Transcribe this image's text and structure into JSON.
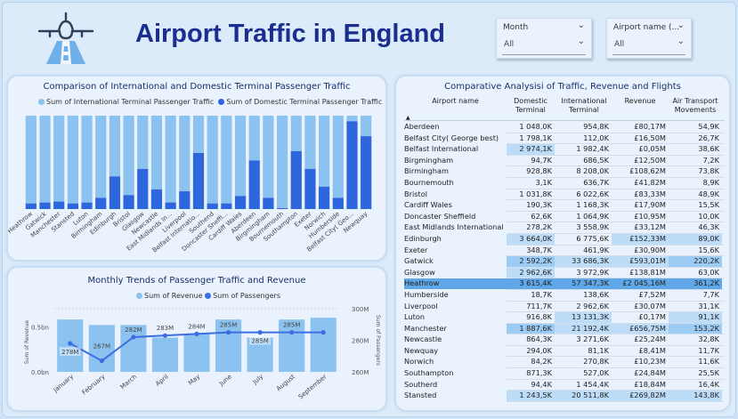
{
  "header": {
    "title": "Airport Traffic in England",
    "logo_icon": "airplane-runway-icon"
  },
  "slicers": [
    {
      "label": "Month",
      "value": "All"
    },
    {
      "label": "Airport name (...",
      "value": "All"
    }
  ],
  "colors": {
    "international": "#8cc2ef",
    "domestic": "#2e66dd",
    "title": "#1a2e8f"
  },
  "comparison": {
    "title": "Comparison of International and Domestic Terminal Passenger Traffic",
    "legend": [
      "Sum of International Terminal Passenger Traffic",
      "Sum of Domestic Terminal Passenger Traffic"
    ]
  },
  "monthly": {
    "title": "Monthly Trends of Passenger Traffic and Revenue",
    "legend": [
      "Sum of Revenue",
      "Sum of Passengers"
    ],
    "y_left_label": "Sum of Revenue",
    "y_right_label": "Sum of Passengers",
    "y_left_ticks": [
      "0.5bn",
      "0.0bn"
    ],
    "y_right_ticks": [
      "300M",
      "280M",
      "260M"
    ]
  },
  "table": {
    "title": "Comparative Analysisi of Traffic, Revenue and Flights",
    "headers": [
      "Airport name",
      "Domestic Terminal",
      "International Terminal",
      "Revenue",
      "Air Transport Movements"
    ],
    "rows": [
      [
        "Aberdeen",
        "1 048,0K",
        "954,8K",
        "£80,17M",
        "54,9K"
      ],
      [
        "Belfast City( George best)",
        "1 798,1K",
        "112,0K",
        "£16,50M",
        "26,7K"
      ],
      [
        "Belfast International",
        "2 974,1K",
        "1 982,4K",
        "£0,05M",
        "38,6K"
      ],
      [
        "Birgmingham",
        "94,7K",
        "686,5K",
        "£12,50M",
        "7,2K"
      ],
      [
        "Birmingham",
        "928,8K",
        "8 208,0K",
        "£108,62M",
        "73,8K"
      ],
      [
        "Bournemouth",
        "3,1K",
        "636,7K",
        "£41,82M",
        "8,9K"
      ],
      [
        "Bristol",
        "1 031,8K",
        "6 022,6K",
        "£83,33M",
        "48,9K"
      ],
      [
        "Cardiff Wales",
        "190,3K",
        "1 168,3K",
        "£17,90M",
        "15,5K"
      ],
      [
        "Doncaster Sheffield",
        "62,6K",
        "1 064,9K",
        "£10,95M",
        "10,0K"
      ],
      [
        "East Midlands International",
        "278,2K",
        "3 558,9K",
        "£33,12M",
        "46,3K"
      ],
      [
        "Edinburgh",
        "3 664,0K",
        "6 775,6K",
        "£152,33M",
        "89,0K"
      ],
      [
        "Exeter",
        "348,7K",
        "461,9K",
        "£30,90M",
        "15,6K"
      ],
      [
        "Gatwick",
        "2 592,2K",
        "33 686,3K",
        "£593,01M",
        "220,2K"
      ],
      [
        "Glasgow",
        "2 962,6K",
        "3 972,9K",
        "£138,81M",
        "63,0K"
      ],
      [
        "Heathrow",
        "3 615,4K",
        "57 347,3K",
        "£2 045,16M",
        "361,2K"
      ],
      [
        "Humberside",
        "18,7K",
        "138,6K",
        "£7,52M",
        "7,7K"
      ],
      [
        "Liverpool",
        "711,7K",
        "2 962,6K",
        "£30,07M",
        "31,1K"
      ],
      [
        "Luton",
        "916,8K",
        "13 131,3K",
        "£0,17M",
        "91,1K"
      ],
      [
        "Manchester",
        "1 887,6K",
        "21 192,4K",
        "£656,75M",
        "153,2K"
      ],
      [
        "Newcastle",
        "864,3K",
        "3 271,6K",
        "£25,24M",
        "32,8K"
      ],
      [
        "Newquay",
        "294,0K",
        "81,1K",
        "£8,41M",
        "11,7K"
      ],
      [
        "Norwich",
        "84,2K",
        "270,8K",
        "£10,23M",
        "11,6K"
      ],
      [
        "Southampton",
        "871,3K",
        "527,0K",
        "£24,84M",
        "25,5K"
      ],
      [
        "Southerd",
        "94,4K",
        "1 454,4K",
        "£18,84M",
        "16,4K"
      ],
      [
        "Stansted",
        "1 243,5K",
        "20 511,8K",
        "£269,82M",
        "143,8K"
      ]
    ]
  },
  "chart_data": [
    {
      "type": "bar",
      "title": "Comparison of International and Domestic Terminal Passenger Traffic",
      "stacked_percent": true,
      "categories": [
        "Heathrow",
        "Gatwick",
        "Manchester",
        "Stansted",
        "Luton",
        "Birmingham",
        "Edinburgh",
        "Bristol",
        "Glasgow",
        "Newcastle",
        "East Midlands In...",
        "Liverpool",
        "Belfast Internatio...",
        "Southend",
        "Doncaster Sheffi...",
        "Cardiff Wales",
        "Aberdeen",
        "Birgmingham",
        "Bournemouth",
        "Southampton",
        "Exeter",
        "Norwich",
        "Humberside",
        "Belfast City( Geo...",
        "Newquay"
      ],
      "series": [
        {
          "name": "Sum of International Terminal Passenger Traffic",
          "values": [
            94,
            93,
            92,
            94,
            93,
            88,
            65,
            85,
            57,
            79,
            93,
            81,
            40,
            94,
            94,
            86,
            48,
            88,
            99,
            38,
            57,
            76,
            88,
            6,
            22
          ]
        },
        {
          "name": "Sum of Domestic Terminal Passenger Traffic",
          "values": [
            6,
            7,
            8,
            6,
            7,
            12,
            35,
            15,
            43,
            21,
            7,
            19,
            60,
            6,
            6,
            14,
            52,
            12,
            1,
            62,
            43,
            24,
            12,
            94,
            78
          ]
        }
      ],
      "ylim": [
        0,
        100
      ],
      "legend_position": "top"
    },
    {
      "type": "bar",
      "title": "Monthly Trends of Passenger Traffic and Revenue",
      "categories": [
        "January",
        "February",
        "March",
        "April",
        "May",
        "June",
        "July",
        "August",
        "September"
      ],
      "series": [
        {
          "name": "Sum of Revenue",
          "axis": "left",
          "unit": "bn",
          "values": [
            0.58,
            0.52,
            0.52,
            0.38,
            0.42,
            0.58,
            0.38,
            0.58,
            0.6
          ]
        },
        {
          "name": "Sum of Passengers",
          "type": "line",
          "axis": "right",
          "unit": "M",
          "values": [
            278,
            267,
            282,
            283,
            284,
            285,
            285,
            285,
            285
          ]
        }
      ],
      "data_labels": [
        "278M",
        "267M",
        "282M",
        "283M",
        "284M",
        "285M",
        "285M",
        "285M",
        ""
      ],
      "ylim_left": [
        0,
        0.7
      ],
      "ylim_right": [
        260,
        300
      ],
      "legend_position": "top"
    }
  ]
}
